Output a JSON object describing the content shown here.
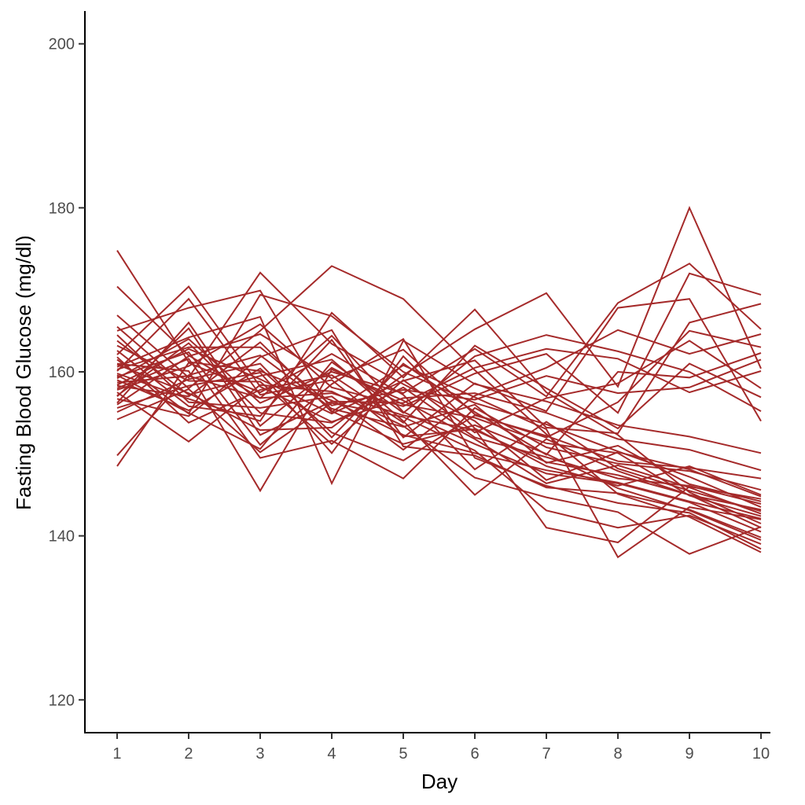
{
  "chart_data": {
    "type": "line",
    "title": "",
    "xlabel": "Day",
    "ylabel": "Fasting Blood Glucose (mg/dl)",
    "x": [
      1,
      2,
      3,
      4,
      5,
      6,
      7,
      8,
      9,
      10
    ],
    "xlim": [
      0.55,
      10.45
    ],
    "ylim": [
      116,
      204
    ],
    "yticks": [
      120,
      140,
      160,
      180,
      200
    ],
    "xticks": [
      1,
      2,
      3,
      4,
      5,
      6,
      7,
      8,
      9,
      10
    ],
    "grid": false,
    "legend": "none",
    "line_color": "#A52A2A",
    "series": [
      {
        "values": [
          174.8,
          161.2,
          160.1,
          156.5,
          152.3,
          150.1,
          148.0,
          146.5,
          144.2,
          142.1
        ]
      },
      {
        "values": [
          170.4,
          162.0,
          156.8,
          157.4,
          154.7,
          152.9,
          149.0,
          147.4,
          145.0,
          143.2
        ]
      },
      {
        "values": [
          166.9,
          159.3,
          172.1,
          163.4,
          158.5,
          154.0,
          146.8,
          150.2,
          148.1,
          144.8
        ]
      },
      {
        "values": [
          165.5,
          158.0,
          165.0,
          172.9,
          168.9,
          160.2,
          152.4,
          145.1,
          142.3,
          138.0
        ]
      },
      {
        "values": [
          165.0,
          167.8,
          169.9,
          155.2,
          151.2,
          153.5,
          150.0,
          145.8,
          143.1,
          139.5
        ]
      },
      {
        "values": [
          163.8,
          157.2,
          159.5,
          161.5,
          154.0,
          145.0,
          151.8,
          147.9,
          145.0,
          141.0
        ]
      },
      {
        "values": [
          162.1,
          170.4,
          158.2,
          153.9,
          156.8,
          157.4,
          155.0,
          151.8,
          150.5,
          148.0
        ]
      },
      {
        "values": [
          161.5,
          154.9,
          169.4,
          166.8,
          160.0,
          156.2,
          153.6,
          150.3,
          147.2,
          143.5
        ]
      },
      {
        "values": [
          161.0,
          160.1,
          145.5,
          160.3,
          156.5,
          151.8,
          146.4,
          148.6,
          145.9,
          142.7
        ]
      },
      {
        "values": [
          160.6,
          164.2,
          166.7,
          146.4,
          163.8,
          158.5,
          156.4,
          153.5,
          152.1,
          150.1
        ]
      },
      {
        "values": [
          160.1,
          168.9,
          157.2,
          159.0,
          152.1,
          153.0,
          141.0,
          139.2,
          146.0,
          144.5
        ]
      },
      {
        "values": [
          159.8,
          156.7,
          154.0,
          167.2,
          159.3,
          167.6,
          157.5,
          152.3,
          145.3,
          141.5
        ]
      },
      {
        "values": [
          159.4,
          162.4,
          151.1,
          158.5,
          164.0,
          149.5,
          146.1,
          144.0,
          142.8,
          138.4
        ]
      },
      {
        "values": [
          159.0,
          155.3,
          160.4,
          152.6,
          149.2,
          154.7,
          152.2,
          149.1,
          148.3,
          147.0
        ]
      },
      {
        "values": [
          158.7,
          159.5,
          156.8,
          164.4,
          155.1,
          151.2,
          147.6,
          146.4,
          144.1,
          140.5
        ]
      },
      {
        "values": [
          158.3,
          157.0,
          163.6,
          155.1,
          160.8,
          156.9,
          153.0,
          137.4,
          143.5,
          142.0
        ]
      },
      {
        "values": [
          158.0,
          161.6,
          149.5,
          151.6,
          147.0,
          155.6,
          150.8,
          148.8,
          147.9,
          145.6
        ]
      },
      {
        "values": [
          157.5,
          151.5,
          158.4,
          157.6,
          153.4,
          147.1,
          144.7,
          142.9,
          137.8,
          141.1
        ]
      },
      {
        "values": [
          157.1,
          163.5,
          155.0,
          153.8,
          158.1,
          152.0,
          149.6,
          147.0,
          146.1,
          143.9
        ]
      },
      {
        "values": [
          156.7,
          154.6,
          161.8,
          165.1,
          150.9,
          149.8,
          145.9,
          145.2,
          143.2,
          139.8
        ]
      },
      {
        "values": [
          156.2,
          166.0,
          153.4,
          160.5,
          156.0,
          154.4,
          151.3,
          150.1,
          144.9,
          142.4
        ]
      },
      {
        "values": [
          155.6,
          158.3,
          159.9,
          150.1,
          161.9,
          153.1,
          148.5,
          146.1,
          148.5,
          145.0
        ]
      },
      {
        "values": [
          154.2,
          157.9,
          150.2,
          156.2,
          154.5,
          150.4,
          143.1,
          141.0,
          142.5,
          139.0
        ]
      },
      {
        "values": [
          149.8,
          159.6,
          162.0,
          155.5,
          153.3,
          156.0,
          148.9,
          151.0,
          146.3,
          144.2
        ]
      },
      {
        "values": [
          148.5,
          161.1,
          157.5,
          162.2,
          157.2,
          148.1,
          153.9,
          148.2,
          145.5,
          143.0
        ]
      },
      {
        "values": [
          160.9,
          157.4,
          152.9,
          153.2,
          159.6,
          165.2,
          169.6,
          158.2,
          180.0,
          160.4
        ]
      },
      {
        "values": [
          159.2,
          164.0,
          156.2,
          160.0,
          157.4,
          162.8,
          157.0,
          168.4,
          173.2,
          165.2
        ]
      },
      {
        "values": [
          157.8,
          160.7,
          165.8,
          158.1,
          155.8,
          159.8,
          162.2,
          155.0,
          172.0,
          169.4
        ]
      },
      {
        "values": [
          162.6,
          155.8,
          154.6,
          163.9,
          152.0,
          158.6,
          155.2,
          167.8,
          168.9,
          154.0
        ]
      },
      {
        "values": [
          158.4,
          162.8,
          159.1,
          154.9,
          158.9,
          161.4,
          153.2,
          152.5,
          166.0,
          168.3
        ]
      },
      {
        "values": [
          164.5,
          156.3,
          155.6,
          157.0,
          150.5,
          157.1,
          160.5,
          165.1,
          162.2,
          164.6
        ]
      },
      {
        "values": [
          155.1,
          159.1,
          161.0,
          152.0,
          161.0,
          155.1,
          149.9,
          160.0,
          159.3,
          162.3
        ]
      },
      {
        "values": [
          161.8,
          153.8,
          157.8,
          159.6,
          153.8,
          163.2,
          158.0,
          153.1,
          161.0,
          156.9
        ]
      },
      {
        "values": [
          157.0,
          165.3,
          152.3,
          156.4,
          156.2,
          160.5,
          162.8,
          161.6,
          157.5,
          160.1
        ]
      },
      {
        "values": [
          163.2,
          158.9,
          158.8,
          151.2,
          159.0,
          152.6,
          156.8,
          158.6,
          163.8,
          158.0
        ]
      },
      {
        "values": [
          156.0,
          161.9,
          164.6,
          159.2,
          162.7,
          154.8,
          152.0,
          156.3,
          165.0,
          163.0
        ]
      },
      {
        "values": [
          159.6,
          155.0,
          150.6,
          161.2,
          155.0,
          161.9,
          164.5,
          162.5,
          160.0,
          155.2
        ]
      },
      {
        "values": [
          160.3,
          163.0,
          163.0,
          155.9,
          157.8,
          156.6,
          159.5,
          157.4,
          158.1,
          161.5
        ]
      }
    ]
  }
}
